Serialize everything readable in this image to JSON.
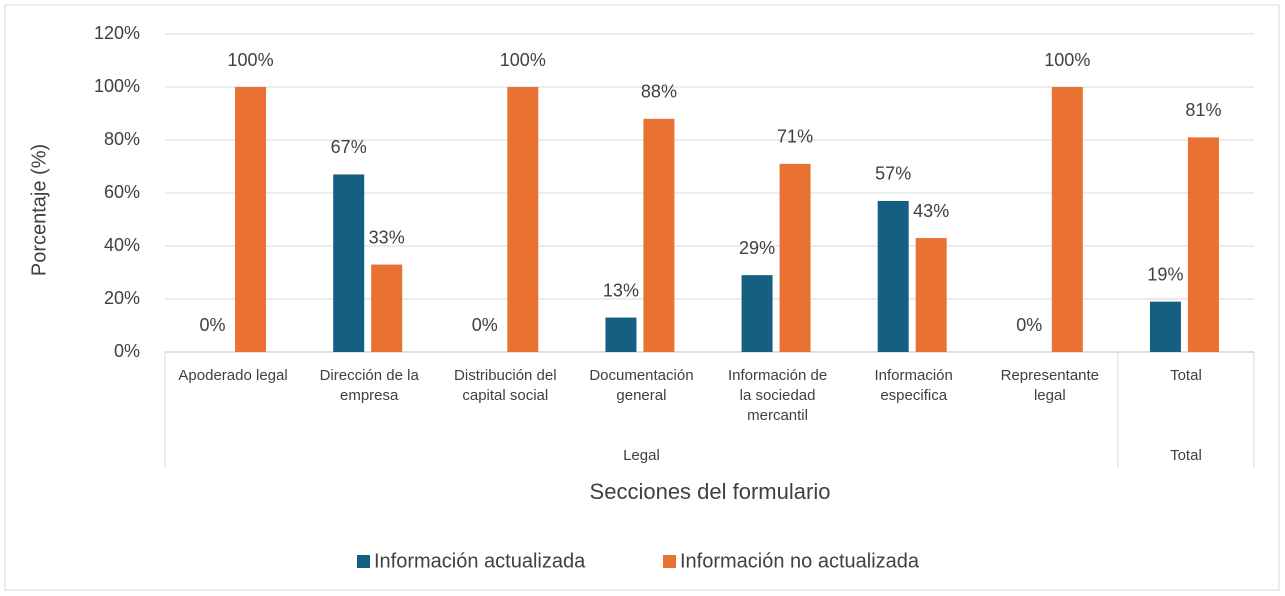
{
  "chart_data": {
    "type": "bar",
    "y_axis_label": "Porcentaje (%)",
    "x_axis_label": "Secciones del formulario",
    "categories": [
      "Apoderado legal",
      "Dirección de la empresa",
      "Distribución del capital social",
      "Documentación general",
      "Información de la sociedad mercantil",
      "Información especifica",
      "Representante legal",
      "Total"
    ],
    "category_groups": [
      "Legal",
      "Legal",
      "Legal",
      "Legal",
      "Legal",
      "Legal",
      "Legal",
      "Total"
    ],
    "series": [
      {
        "name": "Información actualizada",
        "color": "#156082",
        "values": [
          0,
          67,
          0,
          13,
          29,
          57,
          0,
          19
        ],
        "value_labels": [
          "0%",
          "67%",
          "0%",
          "13%",
          "29%",
          "57%",
          "0%",
          "19%"
        ]
      },
      {
        "name": "Información no actualizada",
        "color": "#e97132",
        "values": [
          100,
          33,
          100,
          88,
          71,
          43,
          100,
          81
        ],
        "value_labels": [
          "100%",
          "33%",
          "100%",
          "88%",
          "71%",
          "43%",
          "100%",
          "81%"
        ]
      }
    ],
    "ylim": [
      0,
      120
    ],
    "yticks": [
      {
        "value": 0,
        "label": "0%"
      },
      {
        "value": 20,
        "label": "20%"
      },
      {
        "value": 40,
        "label": "40%"
      },
      {
        "value": 60,
        "label": "60%"
      },
      {
        "value": 80,
        "label": "80%"
      },
      {
        "value": 100,
        "label": "100%"
      },
      {
        "value": 120,
        "label": "120%"
      }
    ],
    "grid": true,
    "legend_position": "bottom"
  }
}
